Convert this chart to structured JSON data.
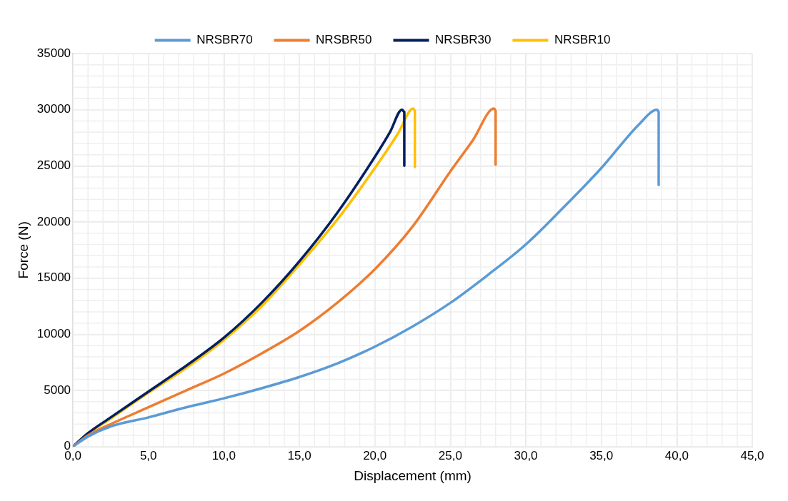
{
  "chart_data": {
    "type": "line",
    "xlabel": "Displacement (mm)",
    "ylabel": "Force (N)",
    "xlim": [
      0,
      45
    ],
    "xticks": [
      {
        "value": 0,
        "label": "0,0"
      },
      {
        "value": 5,
        "label": "5,0"
      },
      {
        "value": 10,
        "label": "10,0"
      },
      {
        "value": 15,
        "label": "15,0"
      },
      {
        "value": 20,
        "label": "20,0"
      },
      {
        "value": 25,
        "label": "25,0"
      },
      {
        "value": 30,
        "label": "30,0"
      },
      {
        "value": 35,
        "label": "35,0"
      },
      {
        "value": 40,
        "label": "40,0"
      },
      {
        "value": 45,
        "label": "45,0"
      }
    ],
    "ylim": [
      0,
      35000
    ],
    "yticks": [
      0,
      5000,
      10000,
      15000,
      20000,
      25000,
      30000,
      35000
    ],
    "grid": true,
    "legend": "top",
    "marker": "none",
    "line_style": "solid",
    "series": [
      {
        "name": "NRSBR70",
        "color": "#5b9bd5",
        "x": [
          0,
          1,
          2.5,
          5,
          7.5,
          10,
          12.5,
          15,
          17.5,
          20,
          22.5,
          25,
          27.5,
          30,
          32.5,
          35,
          37.5,
          38.7,
          38.8,
          38.8
        ],
        "values": [
          0,
          900,
          1800,
          2600,
          3500,
          4300,
          5200,
          6200,
          7400,
          8900,
          10700,
          12800,
          15300,
          18000,
          21300,
          24800,
          28700,
          30000,
          29800,
          23300
        ]
      },
      {
        "name": "NRSBR50",
        "color": "#ed7d31",
        "x": [
          0,
          1,
          2.5,
          5,
          7.5,
          10,
          12.5,
          15,
          17.5,
          20,
          22.5,
          25,
          26.5,
          27.9,
          28.0,
          28.0
        ],
        "values": [
          0,
          1000,
          2000,
          3500,
          5000,
          6500,
          8300,
          10300,
          12800,
          15800,
          19600,
          24500,
          27300,
          30100,
          29900,
          25100
        ]
      },
      {
        "name": "NRSBR30",
        "color": "#002060",
        "x": [
          0,
          1,
          2.5,
          5,
          7.5,
          10,
          12.5,
          15,
          17.5,
          20,
          21,
          21.8,
          21.95,
          21.95
        ],
        "values": [
          0,
          1200,
          2600,
          4900,
          7200,
          9700,
          12800,
          16500,
          20800,
          25800,
          28000,
          30000,
          29800,
          25000
        ]
      },
      {
        "name": "NRSBR10",
        "color": "#ffc000",
        "x": [
          0,
          1,
          2.5,
          5,
          7.5,
          10,
          12.5,
          15,
          17.5,
          20,
          21.5,
          22.55,
          22.65,
          22.65
        ],
        "values": [
          0,
          1150,
          2500,
          4800,
          7000,
          9500,
          12500,
          16200,
          20200,
          24800,
          27800,
          30100,
          29900,
          24900
        ]
      }
    ]
  }
}
